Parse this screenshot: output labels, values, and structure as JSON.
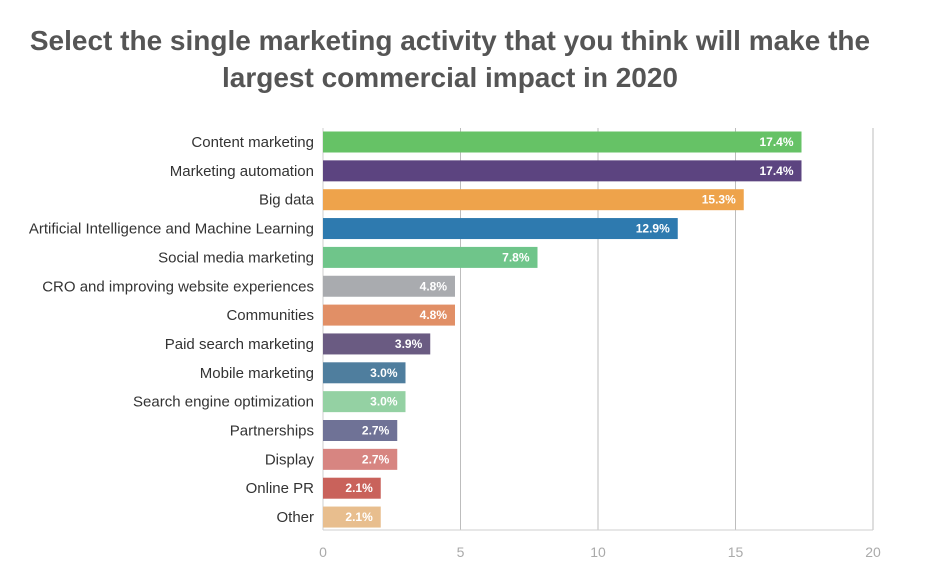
{
  "chart_data": {
    "type": "bar",
    "orientation": "horizontal",
    "title": [
      "Select the single marketing activity that you think will make the",
      "largest commercial impact in 2020"
    ],
    "categories": [
      "Content marketing",
      "Marketing automation",
      "Big data",
      "Artificial Intelligence and Machine Learning",
      "Social media marketing",
      "CRO and improving website experiences",
      "Communities",
      "Paid search marketing",
      "Mobile marketing",
      "Search engine optimization",
      "Partnerships",
      "Display",
      "Online PR",
      "Other"
    ],
    "values": [
      17.4,
      17.4,
      15.3,
      12.9,
      7.8,
      4.8,
      4.8,
      3.9,
      3.0,
      3.0,
      2.7,
      2.7,
      2.1,
      2.1
    ],
    "value_labels": [
      "17.4%",
      "17.4%",
      "15.3%",
      "12.9%",
      "7.8%",
      "4.8%",
      "4.8%",
      "3.9%",
      "3.0%",
      "3.0%",
      "2.7%",
      "2.7%",
      "2.1%",
      "2.1%"
    ],
    "colors": [
      "#66c266",
      "#5c4480",
      "#eea34b",
      "#2e7aaf",
      "#6fc58a",
      "#a9abaf",
      "#e18f66",
      "#6a5b82",
      "#4f7e9e",
      "#94d1a3",
      "#6f7296",
      "#d78581",
      "#c9625b",
      "#e8be8e"
    ],
    "xlim": [
      0,
      20
    ],
    "xticks": [
      0,
      5,
      10,
      15,
      20
    ],
    "xlabel": "",
    "ylabel": "",
    "grid": true
  }
}
